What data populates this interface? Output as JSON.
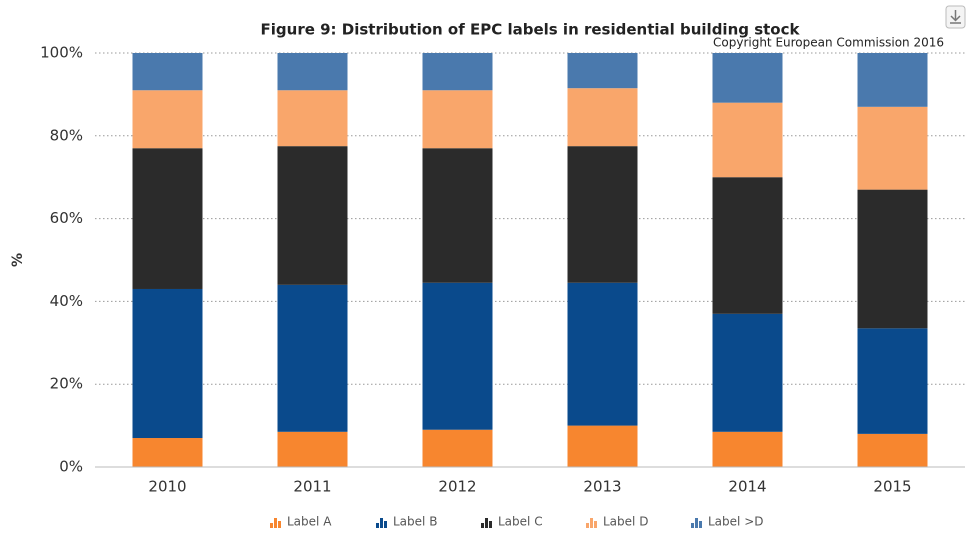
{
  "chart_data": {
    "type": "stacked_bar",
    "title": "Figure 9: Distribution of EPC labels in residential building stock",
    "subtitle": "Copyright European Commission 2016",
    "y_label": "%",
    "categories": [
      "2010",
      "2011",
      "2012",
      "2013",
      "2014",
      "2015"
    ],
    "series": [
      {
        "name": "Label A",
        "color": "#f7862f",
        "values": [
          7,
          8.5,
          9,
          10,
          8.5,
          8
        ]
      },
      {
        "name": "Label B",
        "color": "#0a4a8c",
        "values": [
          36,
          35.5,
          35.5,
          34.5,
          28.5,
          25.5
        ]
      },
      {
        "name": "Label C",
        "color": "#2b2b2b",
        "values": [
          34,
          33.5,
          32.5,
          33,
          33,
          33.5
        ]
      },
      {
        "name": "Label D",
        "color": "#f9a66b",
        "values": [
          14,
          13.5,
          14,
          14,
          18,
          20
        ]
      },
      {
        "name": "Label >D",
        "color": "#4a79ad",
        "values": [
          9,
          9,
          9,
          8.5,
          12,
          13
        ]
      }
    ],
    "ylim": [
      0,
      100
    ],
    "yticks": [
      {
        "value": 0,
        "label": "0%"
      },
      {
        "value": 20,
        "label": "20%"
      },
      {
        "value": 40,
        "label": "40%"
      },
      {
        "value": 60,
        "label": "60%"
      },
      {
        "value": 80,
        "label": "80%"
      },
      {
        "value": 100,
        "label": "100%"
      }
    ],
    "grid": true,
    "legend": "bottom"
  }
}
